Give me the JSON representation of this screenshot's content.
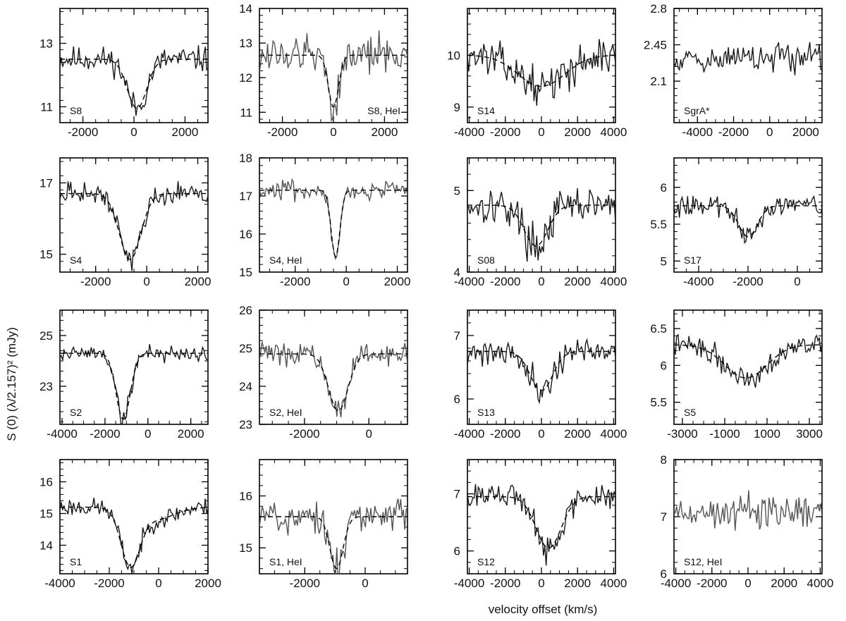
{
  "figure": {
    "xlabel": "velocity offset (km/s)",
    "ylabel": "S (0) (λ/2.157)² (mJy)"
  },
  "chart_data": [
    {
      "type": "line",
      "label": "S8",
      "xlim": [
        -2900,
        2900
      ],
      "ylim": [
        10.5,
        14.1
      ],
      "xticks": [
        -2000,
        0,
        2000
      ],
      "yticks": [
        11,
        13
      ],
      "continuum": 12.5,
      "dips": [
        {
          "center": 120,
          "width": 380,
          "depth": 1.55
        }
      ],
      "noise": 0.35,
      "seed": 11,
      "series": [
        {
          "name": "data",
          "values": []
        },
        {
          "name": "model",
          "values": []
        }
      ]
    },
    {
      "type": "line",
      "label": "S8, HeI",
      "xlim": [
        -2900,
        2900
      ],
      "ylim": [
        10.7,
        14.0
      ],
      "xticks": [
        -2000,
        0,
        2000
      ],
      "yticks": [
        11,
        12,
        13,
        14
      ],
      "continuum": 12.65,
      "dips": [
        {
          "center": 0,
          "width": 200,
          "depth": 1.5
        }
      ],
      "noise": 0.5,
      "seed": 12,
      "gray": true,
      "series": [
        {
          "name": "data",
          "values": []
        },
        {
          "name": "model",
          "values": []
        }
      ]
    },
    {
      "type": "line",
      "label": "S14",
      "xlim": [
        -4100,
        4100
      ],
      "ylim": [
        8.7,
        10.9
      ],
      "xticks": [
        -4000,
        -2000,
        0,
        2000,
        4000
      ],
      "yticks": [
        9,
        10
      ],
      "continuum": 10.0,
      "dips": [
        {
          "center": 0,
          "width": 1300,
          "depth": 0.6
        }
      ],
      "noise": 0.28,
      "seed": 13,
      "series": [
        {
          "name": "data",
          "values": []
        },
        {
          "name": "model",
          "values": []
        }
      ]
    },
    {
      "type": "line",
      "label": "SgrA*",
      "xlim": [
        -5300,
        2900
      ],
      "ylim": [
        1.7,
        2.8
      ],
      "xticks": [
        -4000,
        -2000,
        0,
        2000
      ],
      "yticks": [
        2.1,
        2.45,
        2.8
      ],
      "continuum": 2.32,
      "dips": [],
      "noise": 0.12,
      "seed": 14,
      "series": [
        {
          "name": "data",
          "values": []
        }
      ]
    },
    {
      "type": "line",
      "label": "S4",
      "xlim": [
        -3400,
        2400
      ],
      "ylim": [
        14.5,
        17.7
      ],
      "xticks": [
        -2000,
        0,
        2000
      ],
      "yticks": [
        15,
        17
      ],
      "continuum": 16.7,
      "dips": [
        {
          "center": -650,
          "width": 420,
          "depth": 1.85
        }
      ],
      "noise": 0.25,
      "seed": 15,
      "series": [
        {
          "name": "data",
          "values": []
        },
        {
          "name": "model",
          "values": []
        }
      ]
    },
    {
      "type": "line",
      "label": "S4, HeI",
      "xlim": [
        -3400,
        2400
      ],
      "ylim": [
        15.0,
        18.0
      ],
      "xticks": [
        -2000,
        0,
        2000
      ],
      "yticks": [
        15,
        16,
        17,
        18
      ],
      "continuum": 17.15,
      "dips": [
        {
          "center": -420,
          "width": 170,
          "depth": 1.75
        }
      ],
      "noise": 0.22,
      "seed": 16,
      "gray": true,
      "series": [
        {
          "name": "data",
          "values": []
        },
        {
          "name": "model",
          "values": []
        }
      ]
    },
    {
      "type": "line",
      "label": "S08",
      "xlim": [
        -4100,
        4100
      ],
      "ylim": [
        4.0,
        5.4
      ],
      "xticks": [
        -4000,
        -2000,
        0,
        2000,
        4000
      ],
      "yticks": [
        4,
        5
      ],
      "continuum": 4.82,
      "dips": [
        {
          "center": -300,
          "width": 650,
          "depth": 0.5
        }
      ],
      "noise": 0.2,
      "seed": 17,
      "series": [
        {
          "name": "data",
          "values": []
        },
        {
          "name": "model",
          "values": []
        }
      ]
    },
    {
      "type": "line",
      "label": "S17",
      "xlim": [
        -5000,
        1000
      ],
      "ylim": [
        4.85,
        6.4
      ],
      "xticks": [
        -4000,
        -2000,
        0
      ],
      "yticks": [
        5.0,
        5.5,
        6.0
      ],
      "continuum": 5.75,
      "dips": [
        {
          "center": -2000,
          "width": 380,
          "depth": 0.42
        }
      ],
      "noise": 0.12,
      "seed": 18,
      "series": [
        {
          "name": "data",
          "values": []
        },
        {
          "name": "model",
          "values": []
        }
      ]
    },
    {
      "type": "line",
      "label": "S2",
      "xlim": [
        -4100,
        2800
      ],
      "ylim": [
        21.5,
        26.0
      ],
      "xticks": [
        -4000,
        -2000,
        0,
        2000
      ],
      "yticks": [
        23,
        25
      ],
      "continuum": 24.3,
      "dips": [
        {
          "center": -1150,
          "width": 330,
          "depth": 2.6
        }
      ],
      "noise": 0.32,
      "seed": 19,
      "series": [
        {
          "name": "data",
          "values": []
        },
        {
          "name": "model",
          "values": []
        }
      ]
    },
    {
      "type": "line",
      "label": "S2, HeI",
      "xlim": [
        -3400,
        1200
      ],
      "ylim": [
        23.0,
        26.0
      ],
      "xticks": [
        -2000,
        0
      ],
      "yticks": [
        23,
        24,
        25,
        26
      ],
      "continuum": 24.85,
      "dips": [
        {
          "center": -950,
          "width": 300,
          "depth": 1.5
        }
      ],
      "noise": 0.25,
      "seed": 20,
      "gray": true,
      "series": [
        {
          "name": "data",
          "values": []
        },
        {
          "name": "model",
          "values": []
        }
      ]
    },
    {
      "type": "line",
      "label": "S13",
      "xlim": [
        -4100,
        4100
      ],
      "ylim": [
        5.6,
        7.4
      ],
      "xticks": [
        -4000,
        -2000,
        0,
        2000,
        4000
      ],
      "yticks": [
        6,
        7
      ],
      "continuum": 6.75,
      "dips": [
        {
          "center": 0,
          "width": 620,
          "depth": 0.62
        }
      ],
      "noise": 0.2,
      "seed": 21,
      "series": [
        {
          "name": "data",
          "values": []
        },
        {
          "name": "model",
          "values": []
        }
      ]
    },
    {
      "type": "line",
      "label": "S5",
      "xlim": [
        -3400,
        3600
      ],
      "ylim": [
        5.2,
        6.75
      ],
      "xticks": [
        -3000,
        -1000,
        1000,
        3000
      ],
      "yticks": [
        5.5,
        6.0,
        6.5
      ],
      "continuum": 6.28,
      "dips": [
        {
          "center": 0,
          "width": 1000,
          "depth": 0.45
        }
      ],
      "noise": 0.13,
      "seed": 22,
      "series": [
        {
          "name": "data",
          "values": []
        },
        {
          "name": "model",
          "values": []
        }
      ]
    },
    {
      "type": "line",
      "label": "S1",
      "xlim": [
        -4000,
        2000
      ],
      "ylim": [
        13.1,
        16.7
      ],
      "xticks": [
        -4000,
        -2000,
        0,
        2000
      ],
      "yticks": [
        14,
        15,
        16
      ],
      "continuum": 15.2,
      "dips": [
        {
          "center": -1150,
          "width": 380,
          "depth": 1.7
        },
        {
          "center": -200,
          "width": 800,
          "depth": 0.4
        }
      ],
      "noise": 0.25,
      "seed": 23,
      "series": [
        {
          "name": "data",
          "values": []
        },
        {
          "name": "model",
          "values": []
        }
      ]
    },
    {
      "type": "line",
      "label": "S1, HeI",
      "xlim": [
        -3500,
        1400
      ],
      "ylim": [
        14.5,
        16.7
      ],
      "xticks": [
        -2000,
        0
      ],
      "yticks": [
        15,
        16
      ],
      "continuum": 15.6,
      "dips": [
        {
          "center": -950,
          "width": 220,
          "depth": 1.0
        }
      ],
      "noise": 0.32,
      "seed": 24,
      "gray": true,
      "series": [
        {
          "name": "data",
          "values": []
        },
        {
          "name": "model",
          "values": []
        }
      ]
    },
    {
      "type": "line",
      "label": "S12",
      "xlim": [
        -4100,
        4100
      ],
      "ylim": [
        5.6,
        7.6
      ],
      "xticks": [
        -4000,
        -2000,
        0,
        2000,
        4000
      ],
      "yticks": [
        6,
        7
      ],
      "continuum": 6.95,
      "dips": [
        {
          "center": 400,
          "width": 700,
          "depth": 0.9
        }
      ],
      "noise": 0.2,
      "seed": 25,
      "series": [
        {
          "name": "data",
          "values": []
        },
        {
          "name": "model",
          "values": []
        }
      ]
    },
    {
      "type": "line",
      "label": "S12, HeI",
      "xlim": [
        -4100,
        4100
      ],
      "ylim": [
        6.0,
        8.0
      ],
      "xticks": [
        -4000,
        -2000,
        0,
        2000,
        4000
      ],
      "yticks": [
        6,
        7,
        8
      ],
      "continuum": 7.1,
      "dips": [],
      "noise": 0.28,
      "seed": 26,
      "gray": true,
      "series": [
        {
          "name": "data",
          "values": []
        }
      ]
    }
  ]
}
